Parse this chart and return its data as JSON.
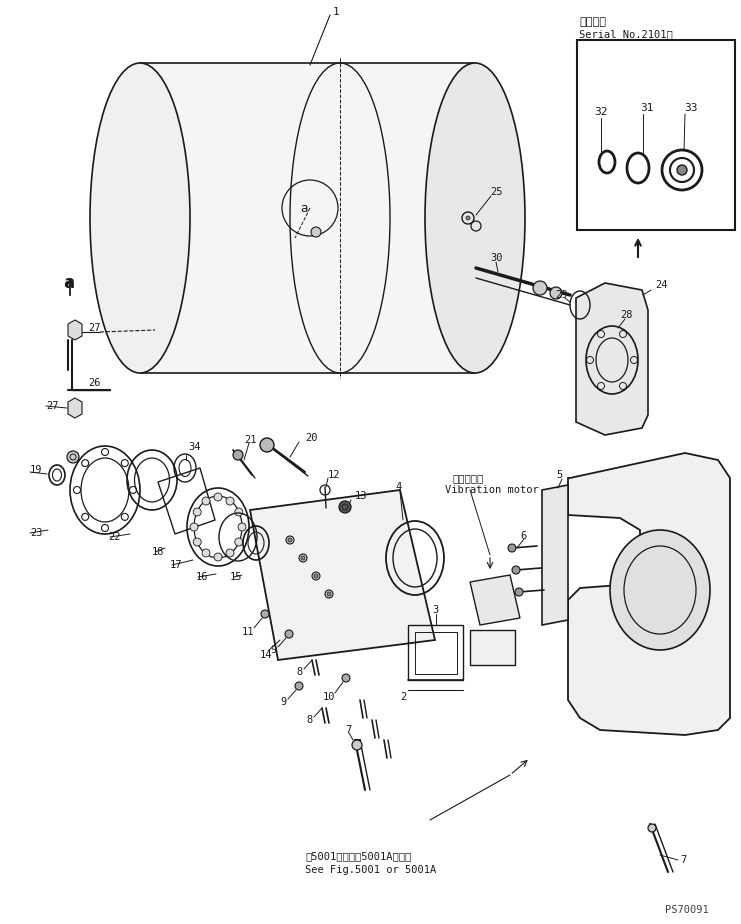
{
  "bg_color": "#ffffff",
  "line_color": "#1a1a1a",
  "fig_width": 7.41,
  "fig_height": 9.24,
  "dpi": 100,
  "watermark": "PS70091",
  "serial_box_label1": "適用号機",
  "serial_box_label2": "Serial No.2101～",
  "vibration_label_jp": "起振モータ",
  "vibration_label_en": "Vibration motor",
  "bottom_note_jp": "第5001図または5001A図参照",
  "bottom_note_en": "See Fig.5001 or 5001A"
}
